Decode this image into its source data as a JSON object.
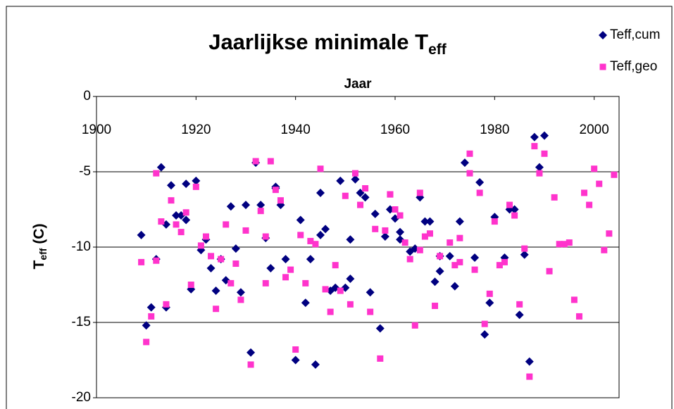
{
  "chart_data": {
    "type": "scatter",
    "title": "Jaarlijkse minimale T",
    "title_subscript": "eff",
    "x_label": "Jaar",
    "y_label": "T",
    "y_label_subscript": "eff",
    "y_label_suffix": " (C)",
    "xlim": [
      1900,
      2005
    ],
    "xticks": [
      1900,
      1920,
      1940,
      1960,
      1980,
      2000
    ],
    "ylim": [
      -20,
      0
    ],
    "yticks": [
      0,
      -5,
      -10,
      -15,
      -20
    ],
    "grid": true,
    "legend": "top-right",
    "series": [
      {
        "name": "Teff,cum",
        "color": "#000080",
        "marker": "diamond",
        "x": [
          1909,
          1910,
          1911,
          1912,
          1913,
          1914,
          1914,
          1915,
          1916,
          1917,
          1918,
          1918,
          1919,
          1920,
          1921,
          1922,
          1923,
          1924,
          1925,
          1926,
          1927,
          1928,
          1929,
          1930,
          1931,
          1932,
          1933,
          1934,
          1935,
          1936,
          1936,
          1937,
          1938,
          1940,
          1941,
          1942,
          1943,
          1944,
          1945,
          1945,
          1946,
          1947,
          1948,
          1949,
          1950,
          1951,
          1951,
          1952,
          1953,
          1954,
          1955,
          1956,
          1957,
          1958,
          1959,
          1960,
          1961,
          1961,
          1963,
          1964,
          1965,
          1966,
          1967,
          1968,
          1969,
          1969,
          1971,
          1972,
          1973,
          1974,
          1976,
          1977,
          1978,
          1979,
          1980,
          1982,
          1983,
          1984,
          1985,
          1986,
          1987,
          1988,
          1989,
          1990
        ],
        "values": [
          -9.2,
          -15.2,
          -14.0,
          -10.8,
          -4.7,
          -8.5,
          -14.0,
          -5.9,
          -7.9,
          -7.9,
          -8.2,
          -5.8,
          -12.8,
          -5.6,
          -10.2,
          -9.5,
          -11.4,
          -12.9,
          -10.8,
          -12.2,
          -7.3,
          -10.1,
          -13.0,
          -7.2,
          -17.0,
          -4.4,
          -7.2,
          -9.4,
          -11.4,
          -6.1,
          -6.0,
          -7.2,
          -10.8,
          -17.5,
          -8.2,
          -13.7,
          -10.8,
          -17.8,
          -9.2,
          -6.4,
          -8.8,
          -12.9,
          -12.7,
          -5.6,
          -12.7,
          -9.5,
          -12.1,
          -5.5,
          -6.4,
          -6.7,
          -13.0,
          -7.8,
          -15.4,
          -9.3,
          -7.5,
          -8.1,
          -9.5,
          -9.0,
          -10.3,
          -10.1,
          -6.7,
          -8.3,
          -8.3,
          -12.3,
          -11.6,
          -10.6,
          -10.6,
          -12.6,
          -8.3,
          -4.4,
          -10.7,
          -5.7,
          -15.8,
          -13.7,
          -8.0,
          -10.7,
          -7.5,
          -7.5,
          -14.5,
          -10.5,
          -17.6,
          -2.7,
          -4.7,
          -2.6
        ]
      },
      {
        "name": "Teff,geo",
        "color": "#ff33cc",
        "marker": "square",
        "x": [
          1909,
          1910,
          1911,
          1912,
          1912,
          1913,
          1914,
          1915,
          1916,
          1917,
          1918,
          1919,
          1920,
          1921,
          1922,
          1923,
          1924,
          1925,
          1926,
          1927,
          1928,
          1929,
          1930,
          1931,
          1932,
          1933,
          1934,
          1934,
          1935,
          1936,
          1937,
          1938,
          1939,
          1940,
          1941,
          1942,
          1943,
          1944,
          1945,
          1946,
          1947,
          1948,
          1949,
          1950,
          1951,
          1952,
          1953,
          1954,
          1955,
          1956,
          1957,
          1958,
          1959,
          1959,
          1960,
          1961,
          1962,
          1963,
          1964,
          1965,
          1965,
          1966,
          1967,
          1968,
          1969,
          1971,
          1972,
          1973,
          1973,
          1975,
          1975,
          1976,
          1977,
          1978,
          1979,
          1980,
          1981,
          1982,
          1983,
          1984,
          1985,
          1986,
          1987,
          1988,
          1989,
          1990,
          1991,
          1992,
          1993,
          1994,
          1995,
          1996,
          1997,
          1998,
          1999,
          2000,
          2001,
          2002,
          2003,
          2004
        ],
        "values": [
          -11.0,
          -16.3,
          -14.6,
          -10.9,
          -5.1,
          -8.3,
          -13.8,
          -6.9,
          -8.5,
          -9.0,
          -7.7,
          -12.5,
          -6.0,
          -9.9,
          -9.3,
          -10.6,
          -14.1,
          -10.8,
          -8.5,
          -12.4,
          -11.1,
          -13.5,
          -8.9,
          -17.8,
          -4.3,
          -7.6,
          -9.3,
          -12.4,
          -4.3,
          -6.2,
          -6.9,
          -12.0,
          -11.5,
          -16.8,
          -9.2,
          -12.4,
          -9.6,
          -9.8,
          -4.8,
          -12.8,
          -14.3,
          -11.2,
          -12.9,
          -6.6,
          -13.8,
          -5.1,
          -7.2,
          -6.1,
          -14.3,
          -8.8,
          -17.4,
          -8.9,
          -6.5,
          -6.5,
          -7.5,
          -7.9,
          -9.7,
          -10.8,
          -15.2,
          -10.2,
          -6.4,
          -9.3,
          -9.1,
          -13.9,
          -10.6,
          -9.7,
          -11.2,
          -11.0,
          -9.4,
          -3.8,
          -5.1,
          -11.5,
          -6.4,
          -15.1,
          -13.1,
          -8.3,
          -11.2,
          -11.0,
          -7.2,
          -7.9,
          -13.8,
          -10.1,
          -18.6,
          -3.3,
          -5.1,
          -3.8,
          -11.6,
          -6.7,
          -9.8,
          -9.8,
          -9.7,
          -13.5,
          -14.6,
          -6.4,
          -7.2,
          -4.8,
          -5.8,
          -10.2,
          -9.1,
          -5.2
        ]
      }
    ]
  }
}
